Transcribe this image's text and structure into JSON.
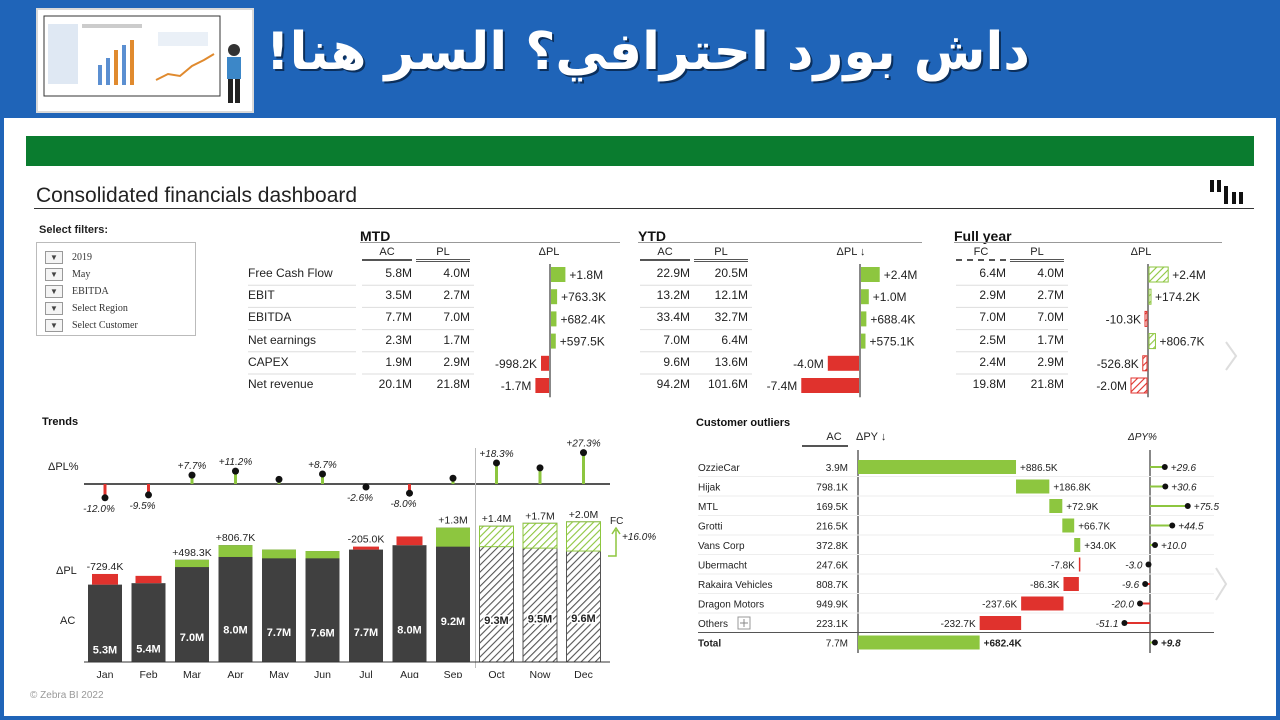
{
  "banner": {
    "title": "داش بورد احترافي؟ السر هنا!"
  },
  "dashboard": {
    "title": "Consolidated financials dashboard",
    "filters_label": "Select filters:",
    "filters": [
      "2019",
      "May",
      "EBITDA",
      "Select Region",
      "Select Customer"
    ],
    "footer": "© Zebra BI 2022"
  },
  "kpi": {
    "sections": [
      {
        "title": "MTD",
        "cols": [
          "AC",
          "PL",
          "ΔPL"
        ]
      },
      {
        "title": "YTD",
        "cols": [
          "AC",
          "PL",
          "ΔPL ↓"
        ]
      },
      {
        "title": "Full year",
        "cols": [
          "FC",
          "PL",
          "ΔPL"
        ]
      }
    ],
    "rows": [
      {
        "label": "Free Cash Flow",
        "mtd": [
          "5.8M",
          "4.0M",
          "+1.8M"
        ],
        "ytd": [
          "22.9M",
          "20.5M",
          "+2.4M"
        ],
        "fy": [
          "6.4M",
          "4.0M",
          "+2.4M"
        ]
      },
      {
        "label": "EBIT",
        "mtd": [
          "3.5M",
          "2.7M",
          "+763.3K"
        ],
        "ytd": [
          "13.2M",
          "12.1M",
          "+1.0M"
        ],
        "fy": [
          "2.9M",
          "2.7M",
          "+174.2K"
        ]
      },
      {
        "label": "EBITDA",
        "mtd": [
          "7.7M",
          "7.0M",
          "+682.4K"
        ],
        "ytd": [
          "33.4M",
          "32.7M",
          "+688.4K"
        ],
        "fy": [
          "7.0M",
          "7.0M",
          "-10.3K"
        ]
      },
      {
        "label": "Net earnings",
        "mtd": [
          "2.3M",
          "1.7M",
          "+597.5K"
        ],
        "ytd": [
          "7.0M",
          "6.4M",
          "+575.1K"
        ],
        "fy": [
          "2.5M",
          "1.7M",
          "+806.7K"
        ]
      },
      {
        "label": "CAPEX",
        "mtd": [
          "1.9M",
          "2.9M",
          "-998.2K"
        ],
        "ytd": [
          "9.6M",
          "13.6M",
          "-4.0M"
        ],
        "fy": [
          "2.4M",
          "2.9M",
          "-526.8K"
        ]
      },
      {
        "label": "Net revenue",
        "mtd": [
          "20.1M",
          "21.8M",
          "-1.7M"
        ],
        "ytd": [
          "94.2M",
          "101.6M",
          "-7.4M"
        ],
        "fy": [
          "19.8M",
          "21.8M",
          "-2.0M"
        ]
      }
    ],
    "mtd_values": [
      1.8,
      0.7633,
      0.6824,
      0.5975,
      -0.9982,
      -1.7
    ],
    "ytd_values": [
      2.4,
      1.0,
      0.6884,
      0.5751,
      -4.0,
      -7.4
    ],
    "fy_values": [
      2.4,
      0.1742,
      -0.0103,
      0.8067,
      -0.5268,
      -2.0
    ]
  },
  "trends": {
    "title": "Trends",
    "row_labels": {
      "pct": "ΔPL%",
      "dpl": "ΔPL",
      "ac": "AC"
    },
    "fc_label": "FC",
    "total_delta_label": "+16.0%"
  },
  "chart_data": [
    {
      "type": "bar",
      "title": "Trends",
      "categories": [
        "Jan",
        "Feb",
        "Mar",
        "Apr",
        "May",
        "Jun",
        "Jul",
        "Aug",
        "Sep",
        "Oct",
        "Now",
        "Dec"
      ],
      "series": [
        {
          "name": "AC",
          "values": [
            5.3,
            5.4,
            7.0,
            8.0,
            7.7,
            7.6,
            7.7,
            8.0,
            9.2,
            9.3,
            9.5,
            9.6
          ],
          "labels": [
            "5.3M",
            "5.4M",
            "7.0M",
            "8.0M",
            "7.7M",
            "7.6M",
            "7.7M",
            "8.0M",
            "9.2M",
            "9.3M",
            "9.5M",
            "9.6M"
          ]
        },
        {
          "name": "ΔPL",
          "values": [
            -0.7294,
            -0.5,
            0.4983,
            0.8067,
            0.6,
            0.5,
            -0.205,
            -0.6,
            1.3,
            1.4,
            1.7,
            2.0
          ],
          "labels": [
            "-729.4K",
            "",
            "+498.3K",
            "+806.7K",
            "",
            "",
            "-205.0K",
            "",
            "+1.3M",
            "+1.4M",
            "+1.7M",
            "+2.0M"
          ]
        },
        {
          "name": "ΔPL%",
          "values": [
            -12.0,
            -9.5,
            7.7,
            11.2,
            4.0,
            8.7,
            -2.6,
            -8.0,
            5.0,
            18.3,
            14.0,
            27.3
          ],
          "labels": [
            "-12.0%",
            "-9.5%",
            "+7.7%",
            "+11.2%",
            "",
            "+8.7%",
            "-2.6%",
            "-8.0%",
            "",
            "+18.3%",
            "",
            "+27.3%"
          ]
        }
      ],
      "forecast_from_index": 9
    },
    {
      "type": "bar",
      "title": "Customer outliers",
      "columns": [
        "AC",
        "ΔPY ↓",
        "ΔPY%"
      ],
      "categories": [
        "OzzieCar",
        "Hijak",
        "MTL",
        "Grotti",
        "Vans Corp",
        "Ubermacht",
        "Rakaira Vehicles",
        "Dragon Motors",
        "Others",
        "Total"
      ],
      "ac": [
        "3.9M",
        "798.1K",
        "169.5K",
        "216.5K",
        "372.8K",
        "247.6K",
        "808.7K",
        "949.9K",
        "223.1K",
        "7.7M"
      ],
      "dpy_values": [
        886.5,
        186.8,
        72.9,
        66.7,
        34.0,
        -7.8,
        -86.3,
        -237.6,
        -232.7,
        682.4
      ],
      "dpy_labels": [
        "+886.5K",
        "+186.8K",
        "+72.9K",
        "+66.7K",
        "+34.0K",
        "-7.8K",
        "-86.3K",
        "-237.6K",
        "-232.7K",
        "+682.4K"
      ],
      "dpy_pct_values": [
        29.6,
        30.6,
        75.5,
        44.5,
        10.0,
        -3.0,
        -9.6,
        -20.0,
        -51.1,
        9.8
      ],
      "dpy_pct_labels": [
        "+29.6",
        "+30.6",
        "+75.5",
        "+44.5",
        "+10.0",
        "-3.0",
        "-9.6",
        "-20.0",
        "-51.1",
        "+9.8"
      ]
    }
  ],
  "colors": {
    "positive": "#8dc63f",
    "negative": "#e0322d",
    "bar": "#404040",
    "banner": "#1f64b8",
    "green_bar": "#0a7c2f"
  }
}
